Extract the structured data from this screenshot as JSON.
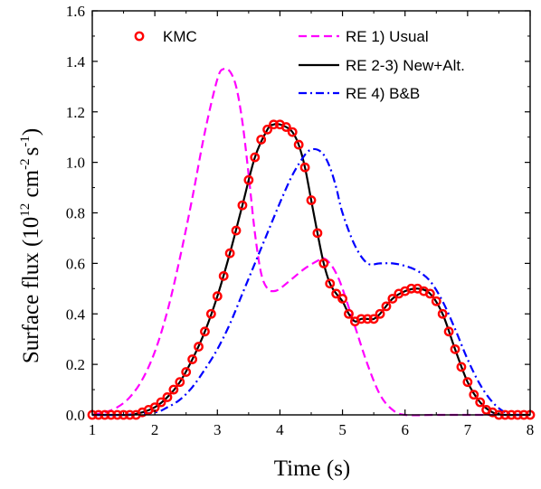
{
  "chart_data": {
    "type": "line",
    "xlabel": "Time (s)",
    "ylabel": {
      "prefix": "Surface flux (10",
      "exp1": "12",
      "mid": " cm",
      "exp2": "-2",
      "mid2": "s",
      "exp3": "-1",
      "suffix": ")"
    },
    "xlim": [
      1,
      8
    ],
    "ylim": [
      0,
      1.6
    ],
    "xticks": [
      1,
      2,
      3,
      4,
      5,
      6,
      7,
      8
    ],
    "yticks": [
      0.0,
      0.2,
      0.4,
      0.6,
      0.8,
      1.0,
      1.2,
      1.4,
      1.6
    ],
    "xtick_labels": [
      "1",
      "2",
      "3",
      "4",
      "5",
      "6",
      "7",
      "8"
    ],
    "ytick_labels": [
      "0.0",
      "0.2",
      "0.4",
      "0.6",
      "0.8",
      "1.0",
      "1.2",
      "1.4",
      "1.6"
    ],
    "grid": false,
    "legend": [
      "KMC",
      "RE 1) Usual",
      "RE 2-3) New+Alt.",
      "RE 4) B&B"
    ],
    "series": [
      {
        "name": "KMC",
        "style": "markers",
        "color": "#ff0000",
        "x": [
          1.0,
          1.1,
          1.2,
          1.3,
          1.4,
          1.5,
          1.6,
          1.7,
          1.8,
          1.9,
          2.0,
          2.1,
          2.2,
          2.3,
          2.4,
          2.5,
          2.6,
          2.7,
          2.8,
          2.9,
          3.0,
          3.1,
          3.2,
          3.3,
          3.4,
          3.5,
          3.6,
          3.7,
          3.8,
          3.9,
          4.0,
          4.1,
          4.2,
          4.3,
          4.4,
          4.5,
          4.6,
          4.7,
          4.8,
          4.9,
          5.0,
          5.1,
          5.2,
          5.3,
          5.4,
          5.5,
          5.6,
          5.7,
          5.8,
          5.9,
          6.0,
          6.1,
          6.2,
          6.3,
          6.4,
          6.5,
          6.6,
          6.7,
          6.8,
          6.9,
          7.0,
          7.1,
          7.2,
          7.3,
          7.4,
          7.5,
          7.6,
          7.7,
          7.8,
          7.9,
          8.0
        ],
        "y": [
          0.0,
          0.0,
          0.0,
          0.0,
          0.0,
          0.0,
          0.0,
          0.0,
          0.01,
          0.02,
          0.03,
          0.05,
          0.07,
          0.1,
          0.13,
          0.17,
          0.22,
          0.27,
          0.33,
          0.4,
          0.47,
          0.55,
          0.64,
          0.73,
          0.83,
          0.93,
          1.02,
          1.09,
          1.13,
          1.15,
          1.15,
          1.14,
          1.12,
          1.07,
          0.98,
          0.85,
          0.72,
          0.6,
          0.52,
          0.48,
          0.46,
          0.4,
          0.37,
          0.38,
          0.38,
          0.38,
          0.4,
          0.43,
          0.46,
          0.48,
          0.49,
          0.5,
          0.5,
          0.49,
          0.48,
          0.45,
          0.4,
          0.33,
          0.26,
          0.19,
          0.13,
          0.08,
          0.05,
          0.02,
          0.01,
          0.0,
          0.0,
          0.0,
          0.0,
          0.0,
          0.0
        ]
      },
      {
        "name": "RE 1) Usual",
        "style": "dashed",
        "color": "#ff00ff",
        "x": [
          1.0,
          1.2,
          1.4,
          1.6,
          1.8,
          2.0,
          2.2,
          2.4,
          2.6,
          2.8,
          3.0,
          3.1,
          3.2,
          3.3,
          3.4,
          3.5,
          3.6,
          3.7,
          3.8,
          3.9,
          4.0,
          4.2,
          4.4,
          4.6,
          4.7,
          4.8,
          4.9,
          5.0,
          5.2,
          5.4,
          5.6,
          5.8,
          6.0,
          6.5,
          7.0,
          8.0
        ],
        "y": [
          0.0,
          0.01,
          0.03,
          0.07,
          0.14,
          0.25,
          0.41,
          0.62,
          0.86,
          1.12,
          1.33,
          1.37,
          1.36,
          1.3,
          1.16,
          0.95,
          0.72,
          0.56,
          0.5,
          0.49,
          0.5,
          0.54,
          0.58,
          0.61,
          0.62,
          0.6,
          0.56,
          0.5,
          0.35,
          0.2,
          0.08,
          0.02,
          0.0,
          0.0,
          0.0,
          0.0
        ]
      },
      {
        "name": "RE 2-3) New+Alt.",
        "style": "solid",
        "color": "#000000",
        "x": [
          1.0,
          1.2,
          1.4,
          1.6,
          1.8,
          2.0,
          2.2,
          2.4,
          2.6,
          2.8,
          3.0,
          3.2,
          3.4,
          3.6,
          3.8,
          3.9,
          4.0,
          4.1,
          4.2,
          4.3,
          4.4,
          4.5,
          4.6,
          4.7,
          4.8,
          4.9,
          5.0,
          5.1,
          5.2,
          5.3,
          5.4,
          5.5,
          5.6,
          5.8,
          6.0,
          6.2,
          6.4,
          6.6,
          6.8,
          7.0,
          7.2,
          7.4,
          7.6,
          7.8,
          8.0
        ],
        "y": [
          0.0,
          0.0,
          0.0,
          0.0,
          0.01,
          0.03,
          0.07,
          0.13,
          0.22,
          0.33,
          0.47,
          0.64,
          0.83,
          1.02,
          1.13,
          1.15,
          1.15,
          1.14,
          1.12,
          1.07,
          0.98,
          0.85,
          0.72,
          0.6,
          0.52,
          0.48,
          0.45,
          0.4,
          0.37,
          0.38,
          0.38,
          0.38,
          0.4,
          0.46,
          0.49,
          0.5,
          0.48,
          0.4,
          0.26,
          0.13,
          0.05,
          0.01,
          0.0,
          0.0,
          0.0
        ]
      },
      {
        "name": "RE 4) B&B",
        "style": "dashdot",
        "color": "#0000ff",
        "x": [
          1.0,
          1.5,
          2.0,
          2.2,
          2.4,
          2.6,
          2.8,
          3.0,
          3.2,
          3.4,
          3.6,
          3.8,
          4.0,
          4.2,
          4.4,
          4.5,
          4.6,
          4.7,
          4.8,
          4.9,
          5.0,
          5.2,
          5.4,
          5.6,
          5.8,
          6.0,
          6.2,
          6.4,
          6.6,
          6.8,
          7.0,
          7.2,
          7.4,
          7.6,
          7.8,
          8.0
        ],
        "y": [
          0.0,
          0.0,
          0.01,
          0.03,
          0.06,
          0.11,
          0.18,
          0.26,
          0.36,
          0.48,
          0.6,
          0.72,
          0.84,
          0.95,
          1.03,
          1.05,
          1.05,
          1.03,
          0.98,
          0.9,
          0.8,
          0.67,
          0.6,
          0.6,
          0.6,
          0.59,
          0.57,
          0.53,
          0.45,
          0.34,
          0.22,
          0.12,
          0.05,
          0.01,
          0.0,
          0.0
        ]
      }
    ]
  }
}
